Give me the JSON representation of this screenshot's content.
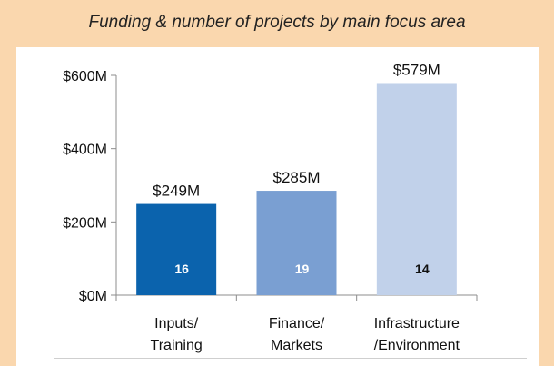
{
  "chart_data": {
    "type": "bar",
    "title": "Funding & number of projects by main focus area",
    "xlabel": "",
    "ylabel": "",
    "ylim": [
      0,
      600
    ],
    "y_ticks": [
      0,
      200,
      400,
      600
    ],
    "y_tick_labels": [
      "$0M",
      "$200M",
      "$400M",
      "$600M"
    ],
    "categories": [
      [
        "Inputs/",
        "Training"
      ],
      [
        "Finance/",
        "Markets"
      ],
      [
        "Infrastructure",
        "/Environment"
      ]
    ],
    "values": [
      249,
      285,
      579
    ],
    "value_labels": [
      "$249M",
      "$285M",
      "$579M"
    ],
    "project_counts": [
      "16",
      "19",
      "14"
    ],
    "bar_colors": [
      "#0b63ad",
      "#7a9fd2",
      "#c1d1ea"
    ],
    "count_label_colors": [
      "#ffffff",
      "#ffffff",
      "#111111"
    ],
    "grid": false,
    "legend": "none"
  }
}
